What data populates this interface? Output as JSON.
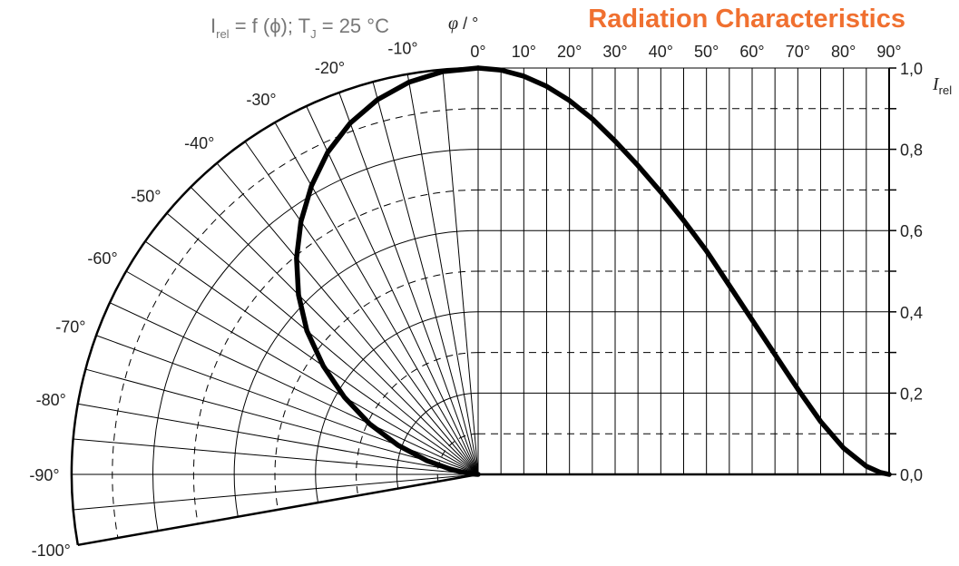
{
  "chart_data": {
    "type": "line",
    "title": "Radiation Characteristics",
    "formula": {
      "I": "I",
      "rel_sub": "rel",
      "eq": " = f (ϕ); T",
      "J_sub": "J",
      "tail": " = 25 °C"
    },
    "phi_axis_label": {
      "symbol": "φ",
      "unit": " / °"
    },
    "y_axis_label": {
      "symbol": "I",
      "sub": "rel"
    },
    "right_ticks": [
      "1,0",
      "0,8",
      "0,6",
      "0,4",
      "0,2",
      "0,0"
    ],
    "top_ticks": [
      "0°",
      "10°",
      "20°",
      "30°",
      "40°",
      "50°",
      "60°",
      "70°",
      "80°",
      "90°"
    ],
    "polar_ticks": [
      "-10°",
      "-20°",
      "-30°",
      "-40°",
      "-50°",
      "-60°",
      "-70°",
      "-80°",
      "-90°",
      "-100°"
    ],
    "ylim": [
      0,
      1.0
    ],
    "xlim_deg": [
      0,
      90
    ],
    "polar_range_deg": [
      -100,
      0
    ],
    "grid": true,
    "series": [
      {
        "x": [
          0,
          5,
          10,
          15,
          20,
          25,
          30,
          35,
          40,
          45,
          50,
          55,
          60,
          65,
          70,
          75,
          80,
          85,
          88,
          90
        ],
        "values": [
          1.0,
          0.995,
          0.98,
          0.955,
          0.92,
          0.875,
          0.82,
          0.76,
          0.695,
          0.625,
          0.55,
          0.465,
          0.38,
          0.295,
          0.21,
          0.13,
          0.065,
          0.02,
          0.005,
          0.0
        ]
      }
    ],
    "colors": {
      "title": "#F07030",
      "curve": "#000000",
      "grid": "#000000",
      "formula": "#777777"
    }
  }
}
